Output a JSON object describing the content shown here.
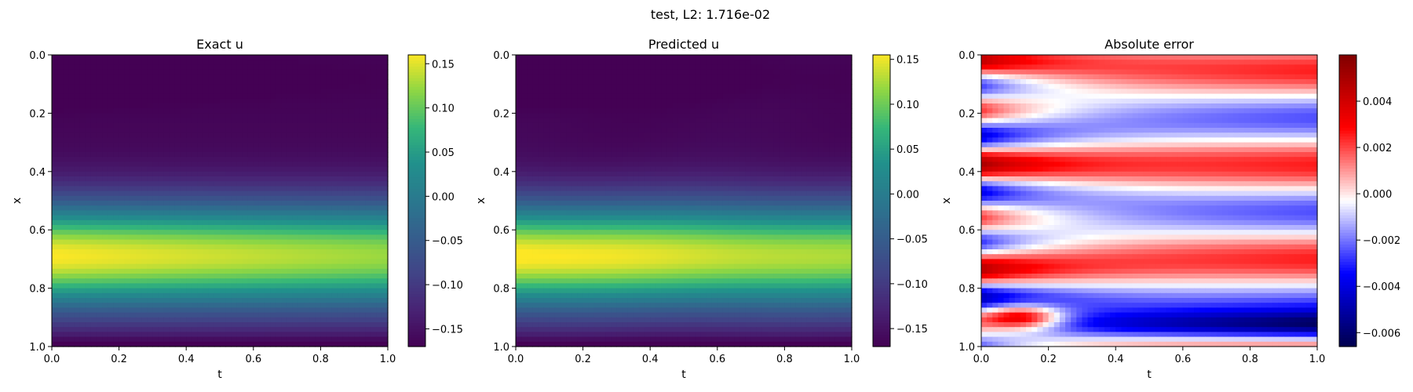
{
  "figure": {
    "suptitle": "test, L2: 1.716e-02"
  },
  "chart_data": [
    {
      "type": "heatmap",
      "title": "Exact u",
      "xlabel": "t",
      "ylabel": "x",
      "xlim": [
        0,
        1
      ],
      "ylim": [
        1,
        0
      ],
      "xticks": [
        "0.0",
        "0.2",
        "0.4",
        "0.6",
        "0.8",
        "1.0"
      ],
      "yticks": [
        "0.0",
        "0.2",
        "0.4",
        "0.6",
        "0.8",
        "1.0"
      ],
      "colormap": "viridis",
      "value_range": [
        -0.17,
        0.16
      ],
      "colorbar_ticks": [
        "0.15",
        "0.10",
        "0.05",
        "0.00",
        "−0.05",
        "−0.10",
        "−0.15"
      ]
    },
    {
      "type": "heatmap",
      "title": "Predicted u",
      "xlabel": "t",
      "ylabel": "x",
      "xlim": [
        0,
        1
      ],
      "ylim": [
        1,
        0
      ],
      "xticks": [
        "0.0",
        "0.2",
        "0.4",
        "0.6",
        "0.8",
        "1.0"
      ],
      "yticks": [
        "0.0",
        "0.2",
        "0.4",
        "0.6",
        "0.8",
        "1.0"
      ],
      "colormap": "viridis",
      "value_range": [
        -0.17,
        0.155
      ],
      "colorbar_ticks": [
        "0.15",
        "0.10",
        "0.05",
        "0.00",
        "−0.05",
        "−0.10",
        "−0.15"
      ]
    },
    {
      "type": "heatmap",
      "title": "Absolute error",
      "xlabel": "t",
      "ylabel": "x",
      "xlim": [
        0,
        1
      ],
      "ylim": [
        1,
        0
      ],
      "xticks": [
        "0.0",
        "0.2",
        "0.4",
        "0.6",
        "0.8",
        "1.0"
      ],
      "yticks": [
        "0.0",
        "0.2",
        "0.4",
        "0.6",
        "0.8",
        "1.0"
      ],
      "colormap": "seismic",
      "value_range": [
        -0.0066,
        0.006
      ],
      "colorbar_ticks": [
        "0.004",
        "0.002",
        "0.000",
        "−0.002",
        "−0.004",
        "−0.006"
      ]
    }
  ]
}
